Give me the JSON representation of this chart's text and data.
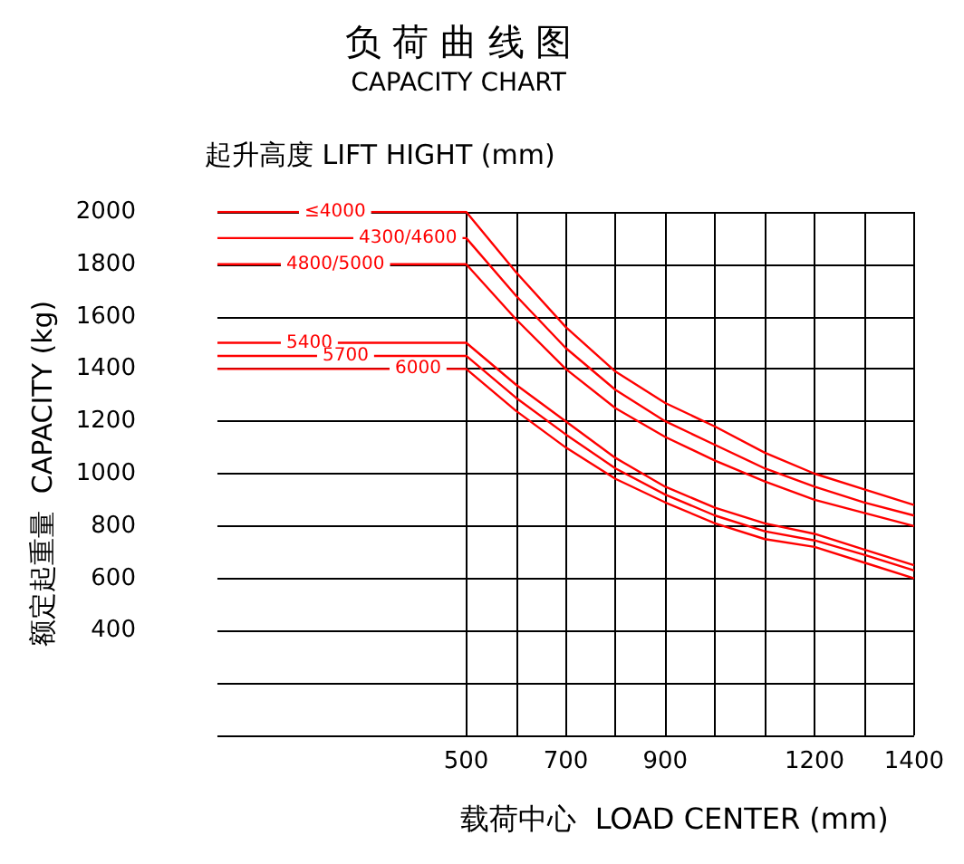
{
  "chart_data": {
    "type": "line",
    "title": "负 荷 曲 线 图",
    "subtitle": "CAPACITY CHART",
    "xlabel": "载荷中心  LOAD CENTER (mm)",
    "ylabel": "额定起重量  CAPACITY (kg)",
    "annotations": [
      "起升高度 LIFT HIGHT (mm)"
    ],
    "x": [
      0,
      500,
      600,
      700,
      800,
      900,
      1000,
      1100,
      1200,
      1300,
      1400
    ],
    "series": [
      {
        "name": "≤4000",
        "color": "#ff0000",
        "values": [
          2000,
          2000,
          1770,
          1560,
          1390,
          1270,
          1180,
          1080,
          1000,
          940,
          880
        ]
      },
      {
        "name": "4300/4600",
        "color": "#ff0000",
        "values": [
          1900,
          1900,
          1680,
          1480,
          1320,
          1200,
          1110,
          1020,
          950,
          890,
          840
        ]
      },
      {
        "name": "4800/5000",
        "color": "#ff0000",
        "values": [
          1800,
          1800,
          1590,
          1400,
          1250,
          1140,
          1050,
          970,
          900,
          850,
          800
        ]
      },
      {
        "name": "5400",
        "color": "#ff0000",
        "values": [
          1500,
          1500,
          1340,
          1200,
          1060,
          950,
          870,
          810,
          770,
          710,
          650
        ]
      },
      {
        "name": "5700",
        "color": "#ff0000",
        "values": [
          1450,
          1450,
          1290,
          1150,
          1020,
          920,
          840,
          780,
          745,
          690,
          630
        ]
      },
      {
        "name": "6000",
        "color": "#ff0000",
        "values": [
          1400,
          1400,
          1240,
          1100,
          980,
          890,
          810,
          750,
          720,
          660,
          600
        ]
      }
    ],
    "xlim": [
      0,
      1400
    ],
    "xticks": [
      500,
      {
        "value": 600,
        "label": null
      },
      700,
      {
        "value": 800,
        "label": null
      },
      900,
      {
        "value": 1000,
        "label": null
      },
      {
        "value": 1100,
        "label": null
      },
      1200,
      {
        "value": 1300,
        "label": null
      },
      1400
    ],
    "ylim": [
      0,
      2000
    ],
    "yticks": [
      {
        "value": 0,
        "label": null
      },
      {
        "value": 200,
        "label": null
      },
      400,
      600,
      800,
      1000,
      1200,
      1400,
      1600,
      1800,
      2000
    ],
    "grid": true,
    "legend": false,
    "marker": "none",
    "line_style": "solid"
  }
}
